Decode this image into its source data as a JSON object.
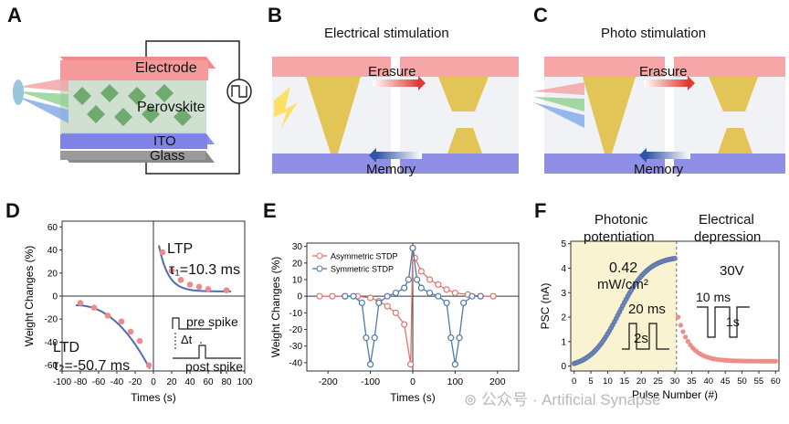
{
  "panels": {
    "A": {
      "letter": "A",
      "electrode": "Electrode",
      "perovskite": "Perovskite",
      "ito": "ITO",
      "glass": "Glass"
    },
    "B": {
      "letter": "B",
      "title": "Electrical stimulation",
      "erasure": "Erasure",
      "memory": "Memory"
    },
    "C": {
      "letter": "C",
      "title": "Photo stimulation",
      "erasure": "Erasure",
      "memory": "Memory"
    },
    "D": {
      "letter": "D",
      "ylabel": "Weight Changes (%)",
      "xlabel": "Times (s)",
      "ltp": "LTP",
      "tau1": "τ₁=10.3 ms",
      "ltd": "LTD",
      "tau2": "τ₂=-50.7 ms",
      "pre_spike": "pre spike",
      "post_spike": "post spike",
      "dt": "Δt",
      "xticks": [
        "-100",
        "-80",
        "-60",
        "-40",
        "-20",
        "0",
        "20",
        "40",
        "60",
        "80",
        "100"
      ],
      "yticks": [
        "60",
        "40",
        "20",
        "0",
        "-20",
        "-40",
        "-60"
      ]
    },
    "E": {
      "letter": "E",
      "ylabel": "Weight Changes (%)",
      "xlabel": "Times (s)",
      "xticks": [
        "-200",
        "-100",
        "0",
        "100",
        "200"
      ],
      "yticks": [
        "30",
        "20",
        "10",
        "0",
        "-10",
        "-20",
        "-30",
        "-40"
      ]
    },
    "F": {
      "letter": "F",
      "ylabel": "PSC (nA)",
      "xlabel": "Pulse Number (#)",
      "photonic": "Photonic",
      "potentiation": "potentiation",
      "electrical": "Electrical",
      "depression": "depression",
      "intensity_value": "0.42",
      "intensity_unit": "mW/cm²",
      "voltage": "30V",
      "t20": "20 ms",
      "t2": "2s",
      "t10": "10 ms",
      "t1": "1s",
      "xticks": [
        "0",
        "5",
        "10",
        "15",
        "20",
        "25",
        "30",
        "35",
        "40",
        "45",
        "50",
        "55",
        "60"
      ],
      "yticks": [
        "0",
        "1",
        "2",
        "3",
        "4",
        "5"
      ]
    }
  },
  "chart_data": [
    {
      "panel": "D",
      "type": "scatter",
      "xlabel": "Times (s)",
      "ylabel": "Weight Changes (%)",
      "xlim": [
        -100,
        100
      ],
      "ylim": [
        -65,
        65
      ],
      "series": [
        {
          "name": "LTP",
          "x": [
            10,
            20,
            30,
            40,
            50,
            60,
            80
          ],
          "y": [
            38,
            22,
            14,
            10,
            8,
            6,
            5
          ]
        },
        {
          "name": "LTD",
          "x": [
            -80,
            -65,
            -50,
            -35,
            -25,
            -15,
            -5
          ],
          "y": [
            -6,
            -10,
            -17,
            -22,
            -31,
            -39,
            -60
          ]
        }
      ],
      "colors": {
        "points": "#ef8a8a",
        "fit": "#4b6fb3"
      }
    },
    {
      "panel": "E",
      "type": "line",
      "xlabel": "Times (s)",
      "ylabel": "Weight Changes (%)",
      "xlim": [
        -250,
        250
      ],
      "ylim": [
        -45,
        32
      ],
      "series": [
        {
          "name": "Asymmetric STDP",
          "x": [
            -220,
            -190,
            -160,
            -130,
            -100,
            -80,
            -60,
            -40,
            -20,
            -5,
            0,
            5,
            20,
            40,
            60,
            80,
            100,
            130,
            160,
            190
          ],
          "y": [
            0,
            0,
            0,
            0,
            -1,
            -3,
            -6,
            -10,
            -17,
            -41,
            29,
            23,
            15,
            10,
            7,
            4,
            2,
            1,
            0,
            0
          ]
        },
        {
          "name": "Symmetric STDP",
          "x": [
            -160,
            -140,
            -120,
            -110,
            -100,
            -90,
            -80,
            -60,
            -40,
            -20,
            -10,
            0,
            10,
            20,
            40,
            60,
            80,
            90,
            100,
            110,
            120,
            140,
            160
          ],
          "y": [
            0,
            0,
            -4,
            -25,
            -41,
            -25,
            -4,
            0,
            2,
            5,
            10,
            29,
            10,
            5,
            2,
            0,
            -4,
            -25,
            -41,
            -25,
            -4,
            0,
            0
          ]
        }
      ],
      "colors": {
        "Asymmetric STDP": "#e0736e",
        "Symmetric STDP": "#4f7aa8"
      }
    },
    {
      "panel": "F",
      "type": "scatter",
      "xlabel": "Pulse Number (#)",
      "ylabel": "PSC (nA)",
      "xlim": [
        -1,
        61
      ],
      "ylim": [
        -0.2,
        5.1
      ],
      "series": [
        {
          "name": "Photonic potentiation",
          "x_start": 0,
          "x_end": 30,
          "y_start": 0.1,
          "y_end": 4.45
        },
        {
          "name": "Electrical depression",
          "x_start": 31,
          "x_end": 60,
          "y_start": 2.0,
          "y_end": 0.2
        }
      ],
      "colors": {
        "potentiation": "#6d86b8",
        "depression": "#f08b86",
        "shade": "#faf3d2"
      }
    }
  ]
}
